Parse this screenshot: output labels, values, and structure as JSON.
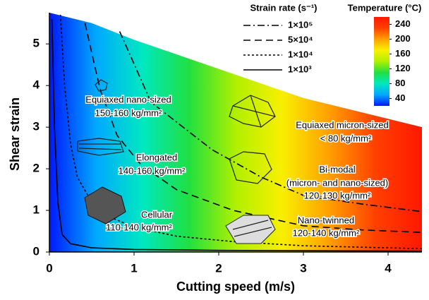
{
  "chart_data": {
    "type": "line",
    "xlabel": "Cutting speed (m/s)",
    "ylabel": "Shear strain",
    "xlim": [
      0,
      4.4
    ],
    "ylim": [
      0,
      5.75
    ],
    "xticks": [
      0,
      1,
      2,
      3,
      4
    ],
    "yticks": [
      0,
      1,
      2,
      3,
      4,
      5
    ],
    "legend_title": "Strain rate (s⁻¹)",
    "series": [
      {
        "name": "1×10⁵",
        "color": "#000000",
        "dash": "dashdot",
        "x": [
          0.83,
          1.2,
          1.92,
          2.5,
          3.0,
          3.7,
          4.4
        ],
        "y": [
          5.3,
          3.6,
          2.46,
          1.8,
          1.36,
          1.15,
          0.97
        ]
      },
      {
        "name": "5×10⁴",
        "color": "#000000",
        "dash": "dashed",
        "x": [
          0.42,
          0.6,
          0.8,
          1.08,
          1.5,
          2.17,
          3.0,
          3.7,
          4.4
        ],
        "y": [
          5.5,
          3.9,
          2.8,
          2.1,
          1.5,
          1.0,
          0.63,
          0.53,
          0.47
        ]
      },
      {
        "name": "1×10⁴",
        "color": "#000000",
        "dash": "dotted",
        "x": [
          0.13,
          0.18,
          0.25,
          0.33,
          0.5,
          0.7,
          1.0,
          1.5,
          2.17,
          3.0,
          4.4
        ],
        "y": [
          5.7,
          4.0,
          2.6,
          1.8,
          1.2,
          0.85,
          0.6,
          0.38,
          0.25,
          0.15,
          0.08
        ]
      },
      {
        "name": "1×10³",
        "color": "#000000",
        "dash": "solid",
        "x": [
          0.03,
          0.06,
          0.1,
          0.15,
          0.25,
          0.5,
          1.0,
          2.0,
          4.4
        ],
        "y": [
          5.6,
          3.0,
          1.2,
          0.42,
          0.2,
          0.1,
          0.06,
          0.04,
          0.02
        ]
      }
    ],
    "surface_boundary": {
      "x": [
        0,
        0.5,
        1,
        2,
        3,
        4.4
      ],
      "y": [
        5.75,
        5.5,
        5.1,
        4.4,
        3.7,
        3.0
      ]
    },
    "colorbar": {
      "label": "Temperature (°C)",
      "lim": [
        20,
        260
      ],
      "ticks": [
        40,
        80,
        120,
        160,
        200,
        240
      ],
      "colors": [
        "#0018ff",
        "#00a8ff",
        "#00e8c0",
        "#20e040",
        "#b0f000",
        "#f8f000",
        "#ffa000",
        "#ff4000",
        "#ff1800"
      ]
    },
    "annotations": [
      {
        "lines": [
          "Equiaxed nano-sized",
          "150-160 kg/mm²"
        ]
      },
      {
        "lines": [
          "Elongated",
          "140-160 kg/mm²"
        ]
      },
      {
        "lines": [
          "Cellular",
          "110-140 kg/mm²"
        ]
      },
      {
        "lines": [
          "Equiaxed  micron-sized",
          "< 80 kg/mm²"
        ]
      },
      {
        "lines": [
          "Bi-modal",
          "(micron-  and  nano-sized)",
          "120-130 kg/mm²"
        ]
      },
      {
        "lines": [
          "Nano-twinned",
          "120-140 kg/mm²"
        ]
      }
    ]
  }
}
